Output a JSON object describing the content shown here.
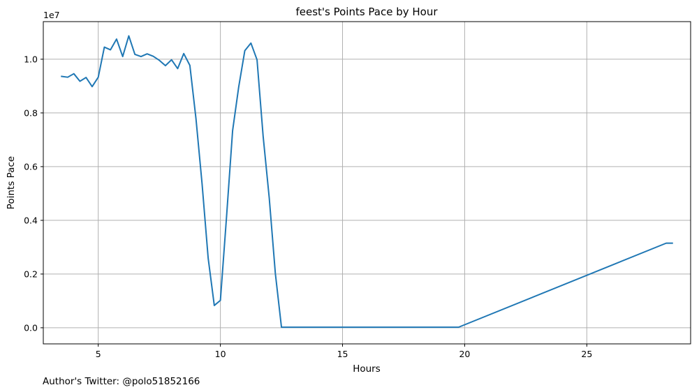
{
  "chart_data": {
    "type": "line",
    "title": "feest's Points Pace by Hour",
    "xlabel": "Hours",
    "ylabel": "Points Pace",
    "y_scale_label": "1e7",
    "footer": "Author's Twitter: @polo51852166",
    "xlim": [
      2.75,
      29.25
    ],
    "ylim": [
      -0.06,
      1.14
    ],
    "grid": true,
    "x_ticks": [
      {
        "value": 5,
        "label": "5"
      },
      {
        "value": 10,
        "label": "10"
      },
      {
        "value": 15,
        "label": "15"
      },
      {
        "value": 20,
        "label": "20"
      },
      {
        "value": 25,
        "label": "25"
      }
    ],
    "y_ticks": [
      {
        "value": 0.0,
        "label": "0.0"
      },
      {
        "value": 0.2,
        "label": "0.2"
      },
      {
        "value": 0.4,
        "label": "0.4"
      },
      {
        "value": 0.6,
        "label": "0.6"
      },
      {
        "value": 0.8,
        "label": "0.8"
      },
      {
        "value": 1.0,
        "label": "1.0"
      }
    ],
    "series": [
      {
        "color": "#1f77b4",
        "x": [
          3.5,
          3.75,
          4.0,
          4.25,
          4.5,
          4.75,
          5.0,
          5.25,
          5.5,
          5.75,
          6.0,
          6.25,
          6.5,
          6.75,
          7.0,
          7.25,
          7.5,
          7.75,
          8.0,
          8.25,
          8.5,
          8.75,
          9.0,
          9.25,
          9.5,
          9.75,
          10.0,
          10.25,
          10.5,
          10.75,
          11.0,
          11.25,
          11.5,
          11.75,
          12.0,
          12.25,
          12.5,
          19.75,
          28.25,
          28.5
        ],
        "y": [
          0.936,
          0.933,
          0.946,
          0.918,
          0.932,
          0.898,
          0.933,
          1.045,
          1.035,
          1.075,
          1.01,
          1.087,
          1.018,
          1.01,
          1.02,
          1.011,
          0.996,
          0.976,
          0.998,
          0.965,
          1.021,
          0.977,
          0.779,
          0.536,
          0.259,
          0.083,
          0.102,
          0.411,
          0.734,
          0.897,
          1.032,
          1.06,
          0.998,
          0.713,
          0.483,
          0.202,
          0.002,
          0.002,
          0.315,
          0.315
        ]
      }
    ]
  }
}
